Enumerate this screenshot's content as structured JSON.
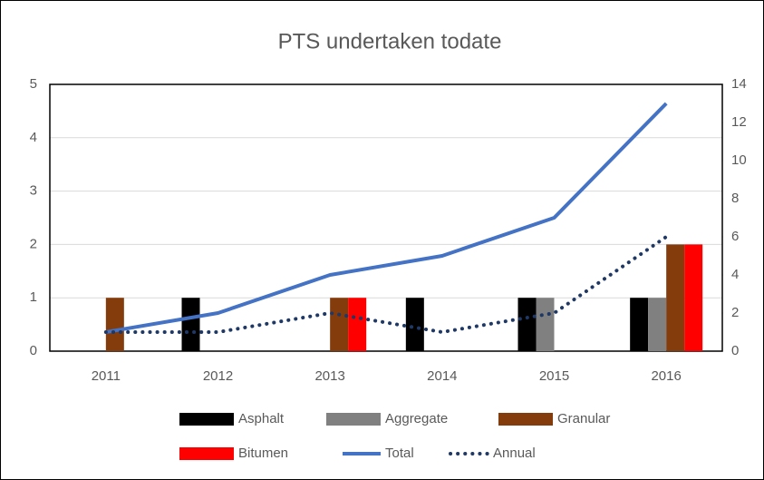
{
  "chart_data": {
    "type": "bar",
    "title": "PTS undertaken todate",
    "categories": [
      "2011",
      "2012",
      "2013",
      "2014",
      "2015",
      "2016"
    ],
    "series": [
      {
        "name": "Asphalt",
        "color": "#000000",
        "values": [
          0,
          1,
          0,
          1,
          1,
          1
        ]
      },
      {
        "name": "Aggregate",
        "color": "#808080",
        "values": [
          0,
          0,
          0,
          0,
          1,
          1
        ]
      },
      {
        "name": "Granular",
        "color": "#843c0c",
        "values": [
          1,
          0,
          1,
          0,
          0,
          2
        ]
      },
      {
        "name": "Bitumen",
        "color": "#ff0000",
        "values": [
          0,
          0,
          1,
          0,
          0,
          2
        ]
      },
      {
        "name": "Total",
        "color": "#4472c4",
        "type": "line",
        "axis": "y2",
        "values": [
          1,
          2,
          4,
          5,
          7,
          13
        ]
      },
      {
        "name": "Annual",
        "color": "#1f3864",
        "type": "line",
        "dash": "dotted",
        "axis": "y2",
        "values": [
          1,
          1,
          2,
          1,
          2,
          6
        ]
      }
    ],
    "ylim": [
      0,
      5
    ],
    "yticks": [
      0,
      1,
      2,
      3,
      4,
      5
    ],
    "y2lim": [
      0,
      14
    ],
    "y2ticks": [
      0,
      2,
      4,
      6,
      8,
      10,
      12,
      14
    ],
    "grid": true,
    "legend": "bottom"
  }
}
